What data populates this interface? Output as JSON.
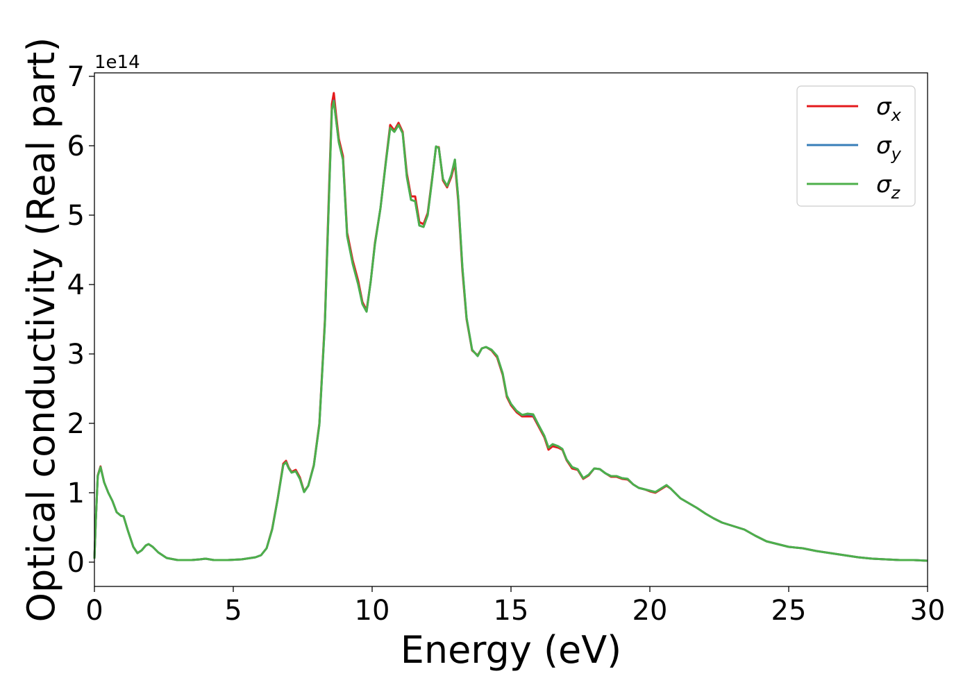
{
  "chart_data": {
    "type": "line",
    "xlabel": "Energy (eV)",
    "ylabel": "Optical conductivity (Real part)",
    "y_offset_label": "1e14",
    "xlim": [
      0,
      30
    ],
    "ylim": [
      -0.35,
      7.05
    ],
    "x_ticks": [
      0,
      5,
      10,
      15,
      20,
      25,
      30
    ],
    "y_ticks": [
      0,
      1,
      2,
      3,
      4,
      5,
      6,
      7
    ],
    "grid": false,
    "legend_position": "top-right",
    "legend": [
      {
        "symbol": "σ",
        "sub": "x",
        "color": "#e41a1c"
      },
      {
        "symbol": "σ",
        "sub": "y",
        "color": "#377eb8"
      },
      {
        "symbol": "σ",
        "sub": "z",
        "color": "#4daf4a"
      }
    ],
    "x": [
      0,
      0.05,
      0.12,
      0.22,
      0.35,
      0.5,
      0.65,
      0.8,
      0.95,
      1.05,
      1.2,
      1.4,
      1.55,
      1.7,
      1.85,
      1.95,
      2.1,
      2.3,
      2.6,
      3.0,
      3.5,
      3.8,
      4.0,
      4.3,
      4.8,
      5.3,
      5.8,
      6.0,
      6.2,
      6.4,
      6.6,
      6.8,
      6.9,
      7.0,
      7.1,
      7.25,
      7.4,
      7.55,
      7.7,
      7.9,
      8.1,
      8.3,
      8.45,
      8.55,
      8.62,
      8.7,
      8.8,
      8.95,
      9.1,
      9.3,
      9.5,
      9.65,
      9.8,
      9.95,
      10.1,
      10.3,
      10.5,
      10.65,
      10.8,
      10.95,
      11.1,
      11.25,
      11.4,
      11.55,
      11.7,
      11.85,
      12.0,
      12.15,
      12.3,
      12.4,
      12.55,
      12.7,
      12.85,
      12.98,
      13.1,
      13.25,
      13.4,
      13.6,
      13.8,
      13.95,
      14.1,
      14.3,
      14.5,
      14.7,
      14.85,
      15.0,
      15.2,
      15.4,
      15.6,
      15.8,
      16.0,
      16.2,
      16.35,
      16.5,
      16.7,
      16.85,
      17.0,
      17.2,
      17.4,
      17.6,
      17.8,
      18.0,
      18.2,
      18.4,
      18.6,
      18.8,
      19.0,
      19.2,
      19.4,
      19.6,
      19.8,
      20.0,
      20.2,
      20.4,
      20.6,
      20.75,
      20.9,
      21.1,
      21.4,
      21.7,
      22.0,
      22.3,
      22.6,
      23.0,
      23.4,
      23.8,
      24.2,
      24.6,
      25.0,
      25.5,
      26.0,
      26.5,
      27.0,
      27.5,
      28.0,
      28.5,
      29.0,
      29.5,
      30.0
    ],
    "series": [
      {
        "name": "σx",
        "color": "#e41a1c",
        "values": [
          0.05,
          0.6,
          1.25,
          1.38,
          1.15,
          1.0,
          0.88,
          0.72,
          0.67,
          0.66,
          0.46,
          0.22,
          0.13,
          0.17,
          0.24,
          0.26,
          0.22,
          0.14,
          0.06,
          0.03,
          0.03,
          0.04,
          0.05,
          0.03,
          0.03,
          0.04,
          0.07,
          0.1,
          0.2,
          0.48,
          0.92,
          1.42,
          1.46,
          1.36,
          1.3,
          1.33,
          1.22,
          1.02,
          1.1,
          1.4,
          2.0,
          3.5,
          5.4,
          6.6,
          6.76,
          6.45,
          6.1,
          5.85,
          4.75,
          4.35,
          4.05,
          3.75,
          3.63,
          4.05,
          4.6,
          5.1,
          5.8,
          6.3,
          6.22,
          6.33,
          6.2,
          5.6,
          5.27,
          5.27,
          4.9,
          4.87,
          5.03,
          5.5,
          5.98,
          5.98,
          5.5,
          5.4,
          5.55,
          5.75,
          5.2,
          4.2,
          3.5,
          3.05,
          2.98,
          3.08,
          3.1,
          3.05,
          2.95,
          2.7,
          2.38,
          2.26,
          2.16,
          2.1,
          2.1,
          2.1,
          1.95,
          1.8,
          1.62,
          1.67,
          1.65,
          1.62,
          1.47,
          1.35,
          1.33,
          1.2,
          1.25,
          1.35,
          1.34,
          1.28,
          1.23,
          1.23,
          1.2,
          1.19,
          1.12,
          1.07,
          1.05,
          1.02,
          1.0,
          1.05,
          1.1,
          1.06,
          1.0,
          0.92,
          0.85,
          0.78,
          0.7,
          0.63,
          0.57,
          0.52,
          0.47,
          0.38,
          0.3,
          0.26,
          0.22,
          0.2,
          0.16,
          0.13,
          0.1,
          0.07,
          0.05,
          0.04,
          0.03,
          0.03,
          0.02
        ]
      },
      {
        "name": "σy",
        "color": "#377eb8",
        "values": [
          0.05,
          0.6,
          1.24,
          1.37,
          1.15,
          1.0,
          0.88,
          0.72,
          0.67,
          0.66,
          0.46,
          0.22,
          0.13,
          0.17,
          0.24,
          0.26,
          0.22,
          0.14,
          0.06,
          0.03,
          0.03,
          0.04,
          0.05,
          0.03,
          0.03,
          0.04,
          0.07,
          0.1,
          0.2,
          0.47,
          0.91,
          1.4,
          1.44,
          1.35,
          1.29,
          1.31,
          1.2,
          1.01,
          1.1,
          1.39,
          1.98,
          3.45,
          5.3,
          6.52,
          6.65,
          6.38,
          6.05,
          5.8,
          4.7,
          4.3,
          4.0,
          3.72,
          3.61,
          4.05,
          4.58,
          5.1,
          5.78,
          6.26,
          6.2,
          6.3,
          6.18,
          5.55,
          5.22,
          5.2,
          4.85,
          4.83,
          5.0,
          5.48,
          5.99,
          5.97,
          5.52,
          5.42,
          5.58,
          5.8,
          5.25,
          4.25,
          3.52,
          3.06,
          2.97,
          3.08,
          3.1,
          3.06,
          2.97,
          2.72,
          2.4,
          2.28,
          2.18,
          2.12,
          2.13,
          2.12,
          1.97,
          1.82,
          1.65,
          1.7,
          1.67,
          1.63,
          1.48,
          1.37,
          1.34,
          1.21,
          1.26,
          1.35,
          1.34,
          1.28,
          1.24,
          1.24,
          1.21,
          1.2,
          1.12,
          1.07,
          1.05,
          1.03,
          1.01,
          1.06,
          1.11,
          1.06,
          1.0,
          0.92,
          0.85,
          0.78,
          0.7,
          0.63,
          0.57,
          0.52,
          0.47,
          0.38,
          0.3,
          0.26,
          0.22,
          0.2,
          0.16,
          0.13,
          0.1,
          0.07,
          0.05,
          0.04,
          0.03,
          0.03,
          0.02
        ]
      },
      {
        "name": "σz",
        "color": "#4daf4a",
        "values": [
          0.05,
          0.6,
          1.24,
          1.37,
          1.15,
          1.0,
          0.88,
          0.72,
          0.67,
          0.66,
          0.46,
          0.22,
          0.13,
          0.17,
          0.24,
          0.26,
          0.22,
          0.14,
          0.06,
          0.03,
          0.03,
          0.04,
          0.05,
          0.03,
          0.03,
          0.04,
          0.07,
          0.1,
          0.2,
          0.47,
          0.91,
          1.4,
          1.44,
          1.35,
          1.29,
          1.31,
          1.2,
          1.01,
          1.1,
          1.39,
          1.98,
          3.45,
          5.3,
          6.52,
          6.64,
          6.38,
          6.05,
          5.8,
          4.7,
          4.3,
          4.0,
          3.72,
          3.61,
          4.05,
          4.58,
          5.1,
          5.78,
          6.26,
          6.2,
          6.3,
          6.18,
          5.55,
          5.22,
          5.2,
          4.85,
          4.83,
          5.0,
          5.48,
          5.99,
          5.97,
          5.52,
          5.42,
          5.58,
          5.8,
          5.25,
          4.25,
          3.52,
          3.06,
          2.97,
          3.08,
          3.1,
          3.06,
          2.97,
          2.72,
          2.4,
          2.28,
          2.18,
          2.12,
          2.14,
          2.13,
          1.97,
          1.82,
          1.65,
          1.7,
          1.67,
          1.63,
          1.48,
          1.37,
          1.34,
          1.21,
          1.26,
          1.35,
          1.34,
          1.28,
          1.24,
          1.24,
          1.21,
          1.2,
          1.12,
          1.07,
          1.05,
          1.03,
          1.01,
          1.06,
          1.11,
          1.06,
          1.0,
          0.92,
          0.85,
          0.78,
          0.7,
          0.63,
          0.57,
          0.52,
          0.47,
          0.38,
          0.3,
          0.26,
          0.22,
          0.2,
          0.16,
          0.13,
          0.1,
          0.07,
          0.05,
          0.04,
          0.03,
          0.03,
          0.02
        ]
      }
    ]
  }
}
